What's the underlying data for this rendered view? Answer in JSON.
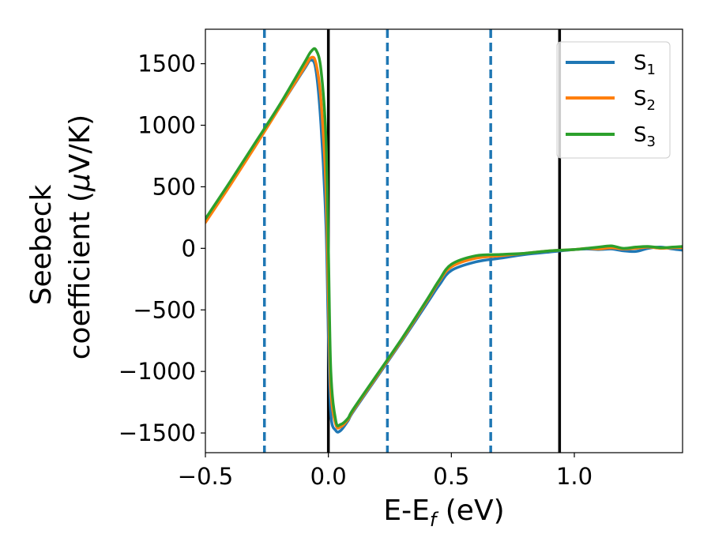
{
  "chart_data": {
    "type": "line",
    "xlabel_main": "E-E",
    "xlabel_sub": "f",
    "xlabel_unit": " (eV)",
    "ylabel_line1": "Seebeck",
    "ylabel_line2_main": "coefficient  (",
    "ylabel_line2_mu": "μ",
    "ylabel_line2_unit": "V/K)",
    "xlim": [
      -0.5,
      1.44
    ],
    "ylim": [
      -1660,
      1780
    ],
    "xticks": [
      -0.5,
      0.0,
      0.5,
      1.0
    ],
    "xtick_labels": [
      "−0.5",
      "0.0",
      "0.5",
      "1.0"
    ],
    "yticks": [
      -1500,
      -1000,
      -500,
      0,
      500,
      1000,
      1500
    ],
    "ytick_labels": [
      "−1500",
      "−1000",
      "−500",
      "0",
      "500",
      "1000",
      "1500"
    ],
    "grid": false,
    "legend_position": "top-right",
    "vlines_solid": [
      0.0,
      0.94
    ],
    "vlines_dashed": [
      -0.26,
      0.24,
      0.66
    ],
    "colors": {
      "solid_vline": "#000000",
      "dashed_vline": "#1f77b4"
    },
    "series": [
      {
        "name": "S",
        "subscript": "1",
        "color": "#1f77b4",
        "x": [
          -0.5,
          -0.4,
          -0.3,
          -0.2,
          -0.1,
          -0.07,
          -0.05,
          -0.03,
          -0.01,
          0.0,
          0.01,
          0.03,
          0.05,
          0.08,
          0.1,
          0.2,
          0.3,
          0.4,
          0.45,
          0.5,
          0.6,
          0.7,
          0.8,
          0.9,
          1.0,
          1.05,
          1.1,
          1.15,
          1.2,
          1.25,
          1.3,
          1.35,
          1.4,
          1.44
        ],
        "y": [
          220,
          520,
          830,
          1140,
          1450,
          1530,
          1440,
          1000,
          200,
          -700,
          -1350,
          -1480,
          -1480,
          -1400,
          -1330,
          -1040,
          -750,
          -450,
          -300,
          -180,
          -110,
          -80,
          -50,
          -30,
          -10,
          -5,
          -10,
          -5,
          -20,
          -25,
          0,
          10,
          -5,
          -15
        ]
      },
      {
        "name": "S",
        "subscript": "2",
        "color": "#ff7f0e",
        "x": [
          -0.5,
          -0.4,
          -0.3,
          -0.2,
          -0.1,
          -0.07,
          -0.05,
          -0.03,
          -0.01,
          0.0,
          0.01,
          0.03,
          0.05,
          0.08,
          0.1,
          0.2,
          0.3,
          0.4,
          0.45,
          0.5,
          0.6,
          0.7,
          0.8,
          0.9,
          1.0,
          1.05,
          1.1,
          1.15,
          1.2,
          1.25,
          1.3,
          1.35,
          1.4,
          1.44
        ],
        "y": [
          210,
          510,
          820,
          1140,
          1460,
          1550,
          1500,
          1200,
          500,
          -400,
          -1150,
          -1430,
          -1450,
          -1390,
          -1320,
          -1030,
          -740,
          -430,
          -270,
          -150,
          -80,
          -60,
          -40,
          -20,
          -10,
          0,
          -5,
          5,
          -5,
          0,
          10,
          0,
          5,
          5
        ]
      },
      {
        "name": "S",
        "subscript": "3",
        "color": "#2ca02c",
        "x": [
          -0.5,
          -0.4,
          -0.3,
          -0.2,
          -0.1,
          -0.07,
          -0.05,
          -0.03,
          -0.01,
          0.0,
          0.01,
          0.03,
          0.05,
          0.08,
          0.1,
          0.2,
          0.3,
          0.4,
          0.45,
          0.5,
          0.6,
          0.7,
          0.8,
          0.9,
          1.0,
          1.05,
          1.1,
          1.15,
          1.2,
          1.25,
          1.3,
          1.35,
          1.4,
          1.44
        ],
        "y": [
          240,
          540,
          850,
          1160,
          1500,
          1600,
          1610,
          1450,
          900,
          0,
          -1000,
          -1400,
          -1430,
          -1380,
          -1310,
          -1020,
          -730,
          -420,
          -260,
          -130,
          -60,
          -50,
          -40,
          -20,
          -10,
          0,
          10,
          20,
          0,
          10,
          15,
          5,
          10,
          15
        ]
      }
    ]
  }
}
